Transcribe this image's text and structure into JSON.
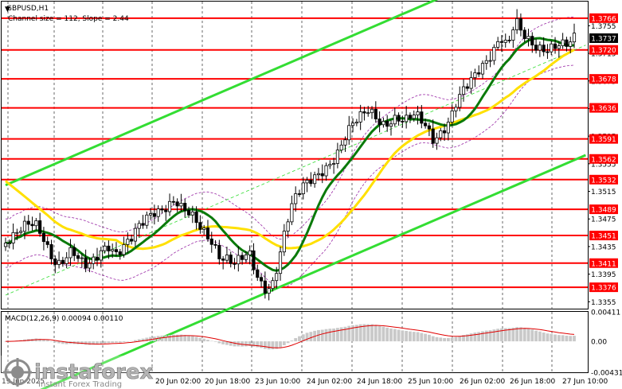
{
  "chart_data": {
    "type": "candlestick",
    "symbol_label": "GBPUSD,H1",
    "channel_label": "Channel size = 112, Slope = 2.44",
    "y_range": [
      1.3345,
      1.379
    ],
    "price_ticks": [
      "1.3755",
      "1.3715",
      "1.3675",
      "1.3635",
      "1.3595",
      "1.3555",
      "1.3515",
      "1.3475",
      "1.3435",
      "1.3395",
      "1.3355"
    ],
    "current_price": "1.3737",
    "levels": [
      {
        "label": "1.3766",
        "value": 1.3766
      },
      {
        "label": "1.3720",
        "value": 1.372
      },
      {
        "label": "1.3678",
        "value": 1.3678
      },
      {
        "label": "1.3636",
        "value": 1.3636
      },
      {
        "label": "1.3591",
        "value": 1.3591
      },
      {
        "label": "1.3562",
        "value": 1.3562
      },
      {
        "label": "1.3532",
        "value": 1.3532
      },
      {
        "label": "1.3489",
        "value": 1.3489
      },
      {
        "label": "1.3451",
        "value": 1.3451
      },
      {
        "label": "1.3411",
        "value": 1.3411
      },
      {
        "label": "1.3376",
        "value": 1.3376
      }
    ],
    "x_tick_labels": [
      "19 Jun 2025",
      "20 Jun 02:00",
      "20 Jun 18:00",
      "23 Jun 10:00",
      "24 Jun 02:00",
      "24 Jun 18:00",
      "25 Jun 10:00",
      "26 Jun 02:00",
      "26 Jun 18:00",
      "27 Jun 10:00"
    ],
    "close_path": [
      1.344,
      1.3445,
      1.3455,
      1.3465,
      1.347,
      1.3455,
      1.343,
      1.341,
      1.3415,
      1.3425,
      1.341,
      1.3405,
      1.3418,
      1.3435,
      1.344,
      1.3425,
      1.3432,
      1.3442,
      1.346,
      1.3475,
      1.3488,
      1.3492,
      1.3498,
      1.3502,
      1.3485,
      1.3478,
      1.3465,
      1.3455,
      1.3445,
      1.3425,
      1.342,
      1.341,
      1.3415,
      1.342,
      1.339,
      1.3375,
      1.338,
      1.342,
      1.347,
      1.35,
      1.3515,
      1.3525,
      1.3535,
      1.3548,
      1.356,
      1.3575,
      1.3595,
      1.361,
      1.3618,
      1.363,
      1.3625,
      1.3615,
      1.362,
      1.3625,
      1.3615,
      1.3622,
      1.3618,
      1.3605,
      1.359,
      1.3605,
      1.362,
      1.3645,
      1.366,
      1.367,
      1.3685,
      1.37,
      1.372,
      1.3745,
      1.373,
      1.3765,
      1.374,
      1.3725,
      1.3718,
      1.372,
      1.3728,
      1.3735,
      1.3732,
      1.3737
    ],
    "indicator": {
      "label": "MACD(12,26,9) 0.00094 0.00110",
      "ticks": [
        "0.00411",
        "0.00",
        "-0.00431"
      ],
      "range": [
        -0.00431,
        0.00411
      ]
    },
    "watermark": "instaforex",
    "watermark_tagline": "Instant Forex Trading",
    "colors": {
      "candle": "#000000",
      "levels": "#ff0000",
      "channel": "#33dd33",
      "ma_fast": "#0a7a0a",
      "ma_slow": "#ffe000",
      "bands": "#9a2aa6",
      "macd": "#c9c9c9",
      "signal": "#e00000"
    }
  }
}
